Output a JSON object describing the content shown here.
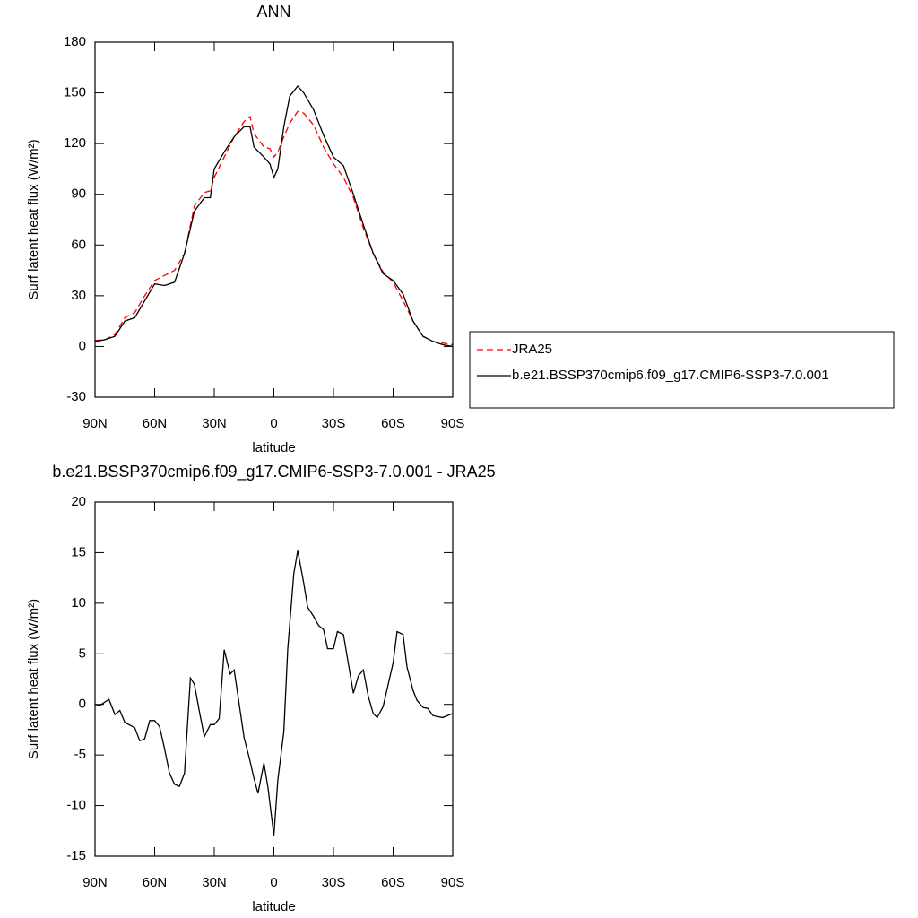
{
  "chart_data": [
    {
      "type": "line",
      "title": "ANN",
      "xlabel": "latitude",
      "ylabel": "Surf latent heat flux (W/m²)",
      "xlim": [
        90,
        -90
      ],
      "ylim": [
        -30,
        180
      ],
      "xticks": [
        {
          "value": 90,
          "label": "90N"
        },
        {
          "value": 60,
          "label": "60N"
        },
        {
          "value": 30,
          "label": "30N"
        },
        0,
        {
          "value": -30,
          "label": "30S"
        },
        {
          "value": -60,
          "label": "60S"
        },
        {
          "value": -90,
          "label": "90S"
        }
      ],
      "yticks": [
        -30,
        0,
        30,
        60,
        90,
        120,
        150,
        180
      ],
      "legend": "right",
      "x": [
        90,
        85,
        80,
        75,
        70,
        65,
        60,
        55,
        50,
        45,
        40,
        35,
        32,
        30,
        25,
        20,
        15,
        12,
        10,
        5,
        2,
        0,
        -2,
        -5,
        -8,
        -12,
        -15,
        -20,
        -25,
        -30,
        -35,
        -40,
        -45,
        -50,
        -55,
        -60,
        -65,
        -70,
        -75,
        -80,
        -85,
        -90
      ],
      "series": [
        {
          "name": "JRA25",
          "color": "#ff0000",
          "dash": true,
          "values": [
            3.5,
            4,
            7,
            17,
            20,
            30,
            39,
            42,
            45,
            55,
            83,
            91,
            92,
            100,
            112,
            124,
            133,
            136,
            126,
            118,
            117,
            112,
            115,
            124,
            132,
            139,
            138,
            131,
            118,
            108,
            100,
            88,
            70,
            55,
            44,
            38,
            27,
            15,
            6,
            3,
            2,
            1
          ]
        },
        {
          "name": "b.e21.BSSP370cmip6.f09_g17.CMIP6-SSP3-7.0.001",
          "color": "#000000",
          "dash": false,
          "values": [
            3,
            4,
            6,
            15,
            17,
            27,
            37,
            36,
            38,
            55,
            80,
            88,
            88,
            105,
            115,
            124,
            130,
            130,
            118,
            112,
            108,
            100,
            105,
            130,
            148,
            154,
            150,
            140,
            125,
            112,
            107,
            90,
            72,
            55,
            43,
            39,
            31,
            15,
            6,
            3,
            1,
            0
          ]
        }
      ]
    },
    {
      "type": "line",
      "title": "b.e21.BSSP370cmip6.f09_g17.CMIP6-SSP3-7.0.001 - JRA25",
      "xlabel": "latitude",
      "ylabel": "Surf latent heat flux (W/m²)",
      "xlim": [
        90,
        -90
      ],
      "ylim": [
        -15,
        20
      ],
      "xticks": [
        {
          "value": 90,
          "label": "90N"
        },
        {
          "value": 60,
          "label": "60N"
        },
        {
          "value": 30,
          "label": "30N"
        },
        0,
        {
          "value": -30,
          "label": "30S"
        },
        {
          "value": -60,
          "label": "60S"
        },
        {
          "value": -90,
          "label": "90S"
        }
      ],
      "yticks": [
        -15,
        -10,
        -5,
        0,
        5,
        10,
        15,
        20
      ],
      "x": [
        90,
        87.5,
        83,
        80,
        77.5,
        75,
        70,
        67.5,
        65,
        62.5,
        60,
        57.5,
        55,
        52.5,
        50,
        47.5,
        45,
        42,
        40,
        37.5,
        35,
        32,
        30,
        27.5,
        25,
        22,
        20,
        15,
        12.5,
        10,
        8,
        5,
        3,
        0,
        -2,
        -5,
        -7,
        -10,
        -12,
        -15,
        -17,
        -20,
        -22.5,
        -25,
        -27,
        -30,
        -32,
        -35,
        -37,
        -40,
        -42.5,
        -45,
        -47.5,
        -50,
        -52,
        -55,
        -57,
        -60,
        -62,
        -65,
        -67,
        -70,
        -72,
        -75,
        -77.5,
        -80,
        -82,
        -85,
        -87.5,
        -90
      ],
      "series": [
        {
          "color": "#000000",
          "dash": false,
          "values": [
            0,
            -0.1,
            0.5,
            -1,
            -0.6,
            -1.8,
            -2.3,
            -3.6,
            -3.4,
            -1.6,
            -1.6,
            -2.2,
            -4.4,
            -6.8,
            -7.9,
            -8.1,
            -6.8,
            2.6,
            2.0,
            -0.7,
            -3.2,
            -2,
            -2,
            -1.4,
            5.4,
            3.0,
            3.4,
            -3.3,
            -5.2,
            -7.3,
            -8.8,
            -5.8,
            -8.2,
            -13,
            -7.5,
            -2.7,
            5.5,
            12.9,
            15.2,
            12.0,
            9.6,
            8.7,
            7.8,
            7.4,
            5.5,
            5.5,
            7.2,
            6.9,
            4.6,
            1.1,
            2.8,
            3.4,
            0.8,
            -0.9,
            -1.3,
            -0.2,
            1.5,
            4.1,
            7.2,
            6.9,
            3.7,
            1.4,
            0.4,
            -0.3,
            -0.4,
            -1.1,
            -1.2,
            -1.3,
            -1.1,
            -0.9
          ]
        }
      ]
    }
  ]
}
